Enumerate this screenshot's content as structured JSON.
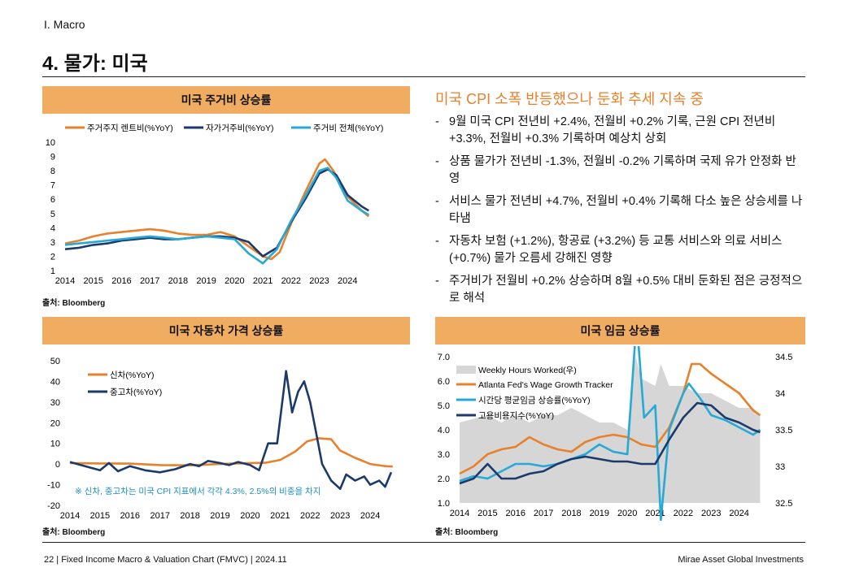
{
  "header": {
    "section": "I. Macro",
    "title": "4. 물가: 미국"
  },
  "right": {
    "title": "미국 CPI 소폭 반등했으나 둔화 추세 지속 중",
    "bullets": [
      "9월 미국 CPI 전년비 +2.4%, 전월비 +0.2% 기록, 근원 CPI 전년비 +3.3%, 전월비 +0.3% 기록하며 예상치 상회",
      "상품 물가가 전년비 -1.3%, 전월비 -0.2% 기록하며 국제 유가 안정화 반영",
      "서비스 물가 전년비 +4.7%, 전월비 +0.4% 기록해 다소 높은 상승세를 나타냄",
      "자동차 보험 (+1.2%), 항공료 (+3.2%) 등 교통 서비스와 의료 서비스 (+0.7%) 물가 오름세 강해진 영향",
      "주거비가 전월비 +0.2% 상승하며 8월 +0.5% 대비 둔화된 점은 긍정적으로 해석"
    ]
  },
  "footer": {
    "left": "22 | Fixed Income Macro & Valuation Chart (FMVC) | 2024.11",
    "right": "Mirae Asset Global Investments"
  },
  "chart_data": [
    {
      "type": "line",
      "title": "미국 주거비 상승률",
      "source": "출처: Bloomberg",
      "ylim": [
        1,
        10
      ],
      "yticks": [
        "1",
        "2",
        "3",
        "4",
        "5",
        "6",
        "7",
        "8",
        "9",
        "10"
      ],
      "xticks": [
        "2014",
        "2015",
        "2016",
        "2017",
        "2018",
        "2019",
        "2020",
        "2021",
        "2022",
        "2023",
        "2024"
      ],
      "legend_position": "top",
      "colors": {
        "rent": "#e8812b",
        "oer": "#1b3a6b",
        "shelter": "#27a9d6"
      },
      "series": [
        {
          "name": "주거주지 렌트비(%YoY)",
          "key": "rent",
          "x": [
            2014,
            2014.5,
            2015,
            2015.5,
            2016,
            2016.5,
            2017,
            2017.5,
            2018,
            2018.5,
            2019,
            2019.5,
            2020,
            2020.5,
            2021,
            2021.3,
            2021.6,
            2022,
            2022.5,
            2023,
            2023.2,
            2023.5,
            2024,
            2024.5,
            2024.75
          ],
          "y": [
            2.9,
            3.1,
            3.4,
            3.6,
            3.7,
            3.8,
            3.9,
            3.8,
            3.6,
            3.5,
            3.5,
            3.7,
            3.4,
            2.7,
            2.0,
            1.8,
            2.3,
            4.3,
            6.5,
            8.5,
            8.8,
            8.0,
            6.2,
            5.2,
            4.8
          ]
        },
        {
          "name": "자가거주비(%YoY)",
          "key": "oer",
          "x": [
            2014,
            2014.5,
            2015,
            2015.5,
            2016,
            2016.5,
            2017,
            2017.5,
            2018,
            2018.5,
            2019,
            2019.5,
            2020,
            2020.5,
            2021,
            2021.5,
            2022,
            2022.5,
            2023,
            2023.3,
            2023.6,
            2024,
            2024.5,
            2024.75
          ],
          "y": [
            2.5,
            2.6,
            2.8,
            2.9,
            3.1,
            3.2,
            3.3,
            3.2,
            3.2,
            3.3,
            3.4,
            3.4,
            3.3,
            3.0,
            2.0,
            2.6,
            4.4,
            6.0,
            7.8,
            8.1,
            7.7,
            6.3,
            5.5,
            5.2
          ]
        },
        {
          "name": "주거비 전체(%YoY)",
          "key": "shelter",
          "x": [
            2014,
            2014.5,
            2015,
            2015.5,
            2016,
            2016.5,
            2017,
            2017.5,
            2018,
            2018.5,
            2019,
            2019.5,
            2020,
            2020.5,
            2021,
            2021.5,
            2022,
            2022.5,
            2023,
            2023.3,
            2023.6,
            2024,
            2024.5,
            2024.75
          ],
          "y": [
            2.8,
            2.9,
            3.0,
            3.1,
            3.2,
            3.3,
            3.4,
            3.3,
            3.2,
            3.3,
            3.4,
            3.3,
            3.2,
            2.2,
            1.5,
            2.5,
            4.5,
            6.2,
            8.0,
            8.2,
            7.5,
            5.9,
            5.2,
            4.9
          ]
        }
      ]
    },
    {
      "type": "line",
      "title": "미국 자동차 가격 상승률",
      "source": "출처: Bloomberg",
      "ylim": [
        -20,
        50
      ],
      "yticks": [
        "-20",
        "-10",
        "0",
        "10",
        "20",
        "30",
        "40",
        "50"
      ],
      "xticks": [
        "2014",
        "2015",
        "2016",
        "2017",
        "2018",
        "2019",
        "2020",
        "2021",
        "2022",
        "2023",
        "2024"
      ],
      "note": "※ 신차, 중고차는 미국 CPI 지표에서 각각 4.3%, 2.5%의 비중을 차지",
      "colors": {
        "new": "#e8812b",
        "used": "#1b3a6b"
      },
      "series": [
        {
          "name": "신차(%YoY)",
          "key": "new",
          "x": [
            2014,
            2015,
            2016,
            2017,
            2018,
            2019,
            2020,
            2020.5,
            2021,
            2021.5,
            2021.9,
            2022.3,
            2022.7,
            2023,
            2023.5,
            2024,
            2024.5,
            2024.75
          ],
          "y": [
            0.5,
            0.3,
            0.2,
            -0.5,
            -0.6,
            0.0,
            0.5,
            0.6,
            2.0,
            6.0,
            11.0,
            12.5,
            12.0,
            6.5,
            3.0,
            0.0,
            -1.0,
            -1.2
          ]
        },
        {
          "name": "중고차(%YoY)",
          "key": "used",
          "x": [
            2014,
            2014.5,
            2015,
            2015.3,
            2015.6,
            2016,
            2016.5,
            2017,
            2017.5,
            2018,
            2018.3,
            2018.6,
            2019,
            2019.3,
            2019.6,
            2020,
            2020.3,
            2020.6,
            2020.9,
            2021.2,
            2021.4,
            2021.6,
            2021.8,
            2022,
            2022.2,
            2022.4,
            2022.7,
            2023,
            2023.2,
            2023.5,
            2023.8,
            2024,
            2024.3,
            2024.5,
            2024.7
          ],
          "y": [
            1.0,
            -1.0,
            -3.0,
            0.5,
            -3.5,
            -1.0,
            -3.0,
            -4.0,
            -2.5,
            0.0,
            -1.0,
            1.5,
            0.5,
            -0.5,
            1.0,
            -0.5,
            -3.0,
            10.0,
            10.0,
            45.0,
            25.0,
            35.0,
            40.0,
            30.0,
            15.0,
            0.0,
            -8.0,
            -12.0,
            -5.0,
            -8.0,
            -6.0,
            -10.0,
            -8.0,
            -11.0,
            -4.0
          ]
        }
      ]
    },
    {
      "type": "line",
      "title": "미국 임금 상승률",
      "source": "출처: Bloomberg",
      "ylim": [
        1.0,
        7.0
      ],
      "y2lim": [
        32.5,
        34.5
      ],
      "yticks": [
        "1.0",
        "2.0",
        "3.0",
        "4.0",
        "5.0",
        "6.0",
        "7.0"
      ],
      "y2ticks": [
        "32.5",
        "33",
        "33.5",
        "34",
        "34.5"
      ],
      "xticks": [
        "2014",
        "2015",
        "2016",
        "2017",
        "2018",
        "2019",
        "2020",
        "2021",
        "2022",
        "2023",
        "2024"
      ],
      "colors": {
        "hours": "#d6d6d6",
        "atlanta": "#e8812b",
        "hourly": "#27a9d6",
        "eci": "#1b3a6b"
      },
      "series": [
        {
          "name": "Weekly Hours Worked(우)",
          "key": "hours",
          "axis": "right",
          "x": [
            2014,
            2015,
            2015.5,
            2016,
            2016.5,
            2017,
            2017.5,
            2018,
            2018.5,
            2019,
            2019.5,
            2020,
            2020.2,
            2020.3,
            2020.5,
            2021,
            2021.2,
            2021.5,
            2022,
            2022.5,
            2023,
            2023.5,
            2024,
            2024.5,
            2024.75
          ],
          "y": [
            33.6,
            33.7,
            33.6,
            33.7,
            33.6,
            33.7,
            33.7,
            33.8,
            33.7,
            33.6,
            33.6,
            33.5,
            34.3,
            34.5,
            34.2,
            34.1,
            34.4,
            34.1,
            34.1,
            34.0,
            34.0,
            33.9,
            33.8,
            33.8,
            33.7
          ]
        },
        {
          "name": "Atlanta Fed's Wage Growth Tracker",
          "key": "atlanta",
          "x": [
            2014,
            2014.5,
            2015,
            2015.5,
            2016,
            2016.5,
            2017,
            2017.5,
            2018,
            2018.5,
            2019,
            2019.5,
            2020,
            2020.5,
            2021,
            2021.5,
            2022,
            2022.3,
            2022.6,
            2023,
            2023.5,
            2024,
            2024.5,
            2024.75
          ],
          "y": [
            2.2,
            2.5,
            3.0,
            3.2,
            3.3,
            3.7,
            3.4,
            3.2,
            3.1,
            3.5,
            3.7,
            3.8,
            3.7,
            3.4,
            3.3,
            4.1,
            5.5,
            6.7,
            6.7,
            6.3,
            5.9,
            5.5,
            4.8,
            4.6
          ]
        },
        {
          "name": "시간당 평균임금 상승률(%YoY)",
          "key": "hourly",
          "x": [
            2014,
            2014.5,
            2015,
            2015.5,
            2016,
            2016.5,
            2017,
            2017.5,
            2018,
            2018.5,
            2019,
            2019.5,
            2020,
            2020.3,
            2020.4,
            2020.6,
            2021,
            2021.2,
            2021.5,
            2022,
            2022.2,
            2022.6,
            2023,
            2023.5,
            2024,
            2024.5,
            2024.75
          ],
          "y": [
            1.9,
            2.1,
            2.0,
            2.3,
            2.6,
            2.6,
            2.5,
            2.6,
            2.8,
            3.0,
            3.4,
            3.1,
            3.0,
            8.0,
            7.5,
            4.5,
            5.0,
            0.3,
            4.0,
            5.5,
            5.9,
            5.3,
            4.6,
            4.4,
            4.1,
            3.8,
            4.0
          ]
        },
        {
          "name": "고용비용지수(%YoY)",
          "key": "eci",
          "x": [
            2014,
            2014.5,
            2015,
            2015.5,
            2016,
            2016.5,
            2017,
            2017.5,
            2018,
            2018.5,
            2019,
            2019.5,
            2020,
            2020.5,
            2021,
            2021.5,
            2022,
            2022.5,
            2023,
            2023.5,
            2024,
            2024.5,
            2024.75
          ],
          "y": [
            1.8,
            2.0,
            2.6,
            2.0,
            2.0,
            2.2,
            2.3,
            2.6,
            2.8,
            2.9,
            2.8,
            2.7,
            2.7,
            2.6,
            2.6,
            3.6,
            4.5,
            5.1,
            5.0,
            4.5,
            4.3,
            4.0,
            3.9
          ]
        }
      ]
    }
  ]
}
